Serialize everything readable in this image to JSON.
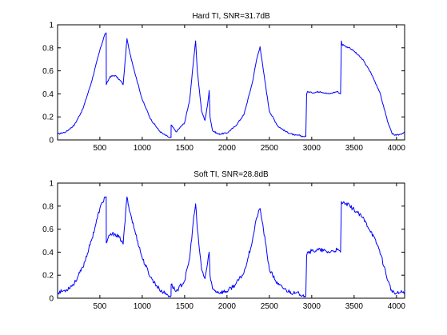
{
  "chart_data": [
    {
      "type": "line",
      "title": "Hard TI, SNR=31.7dB",
      "xlabel": "",
      "ylabel": "",
      "xlim": [
        1,
        4096
      ],
      "ylim": [
        0,
        1
      ],
      "xticks": [
        500,
        1000,
        1500,
        2000,
        2500,
        3000,
        3500,
        4000
      ],
      "yticks": [
        0,
        0.2,
        0.4,
        0.6,
        0.8,
        1
      ],
      "grid": false,
      "line_color": "#0000ff",
      "series": [
        {
          "x": [
            1,
            100,
            200,
            300,
            400,
            500,
            560,
            575,
            576,
            620,
            680,
            760,
            775,
            820,
            840,
            900,
            1000,
            1100,
            1200,
            1250,
            1300,
            1320,
            1340,
            1341,
            1400,
            1500,
            1560,
            1600,
            1630,
            1650,
            1700,
            1740,
            1770,
            1790,
            1800,
            1830,
            1900,
            2000,
            2100,
            2200,
            2300,
            2350,
            2390,
            2430,
            2500,
            2600,
            2700,
            2800,
            2850,
            2900,
            2930,
            2940,
            2950,
            3000,
            3100,
            3200,
            3250,
            3300,
            3340,
            3350,
            3360,
            3370,
            3400,
            3450,
            3500,
            3600,
            3700,
            3800,
            3900,
            3950,
            4000,
            4050,
            4096
          ],
          "y": [
            0.05,
            0.07,
            0.13,
            0.27,
            0.5,
            0.78,
            0.92,
            0.93,
            0.48,
            0.55,
            0.56,
            0.5,
            0.48,
            0.88,
            0.8,
            0.62,
            0.35,
            0.18,
            0.08,
            0.05,
            0.03,
            0.02,
            0.02,
            0.13,
            0.07,
            0.15,
            0.35,
            0.65,
            0.86,
            0.6,
            0.25,
            0.17,
            0.3,
            0.43,
            0.2,
            0.08,
            0.05,
            0.06,
            0.12,
            0.22,
            0.5,
            0.7,
            0.81,
            0.6,
            0.25,
            0.12,
            0.07,
            0.04,
            0.04,
            0.03,
            0.03,
            0.4,
            0.42,
            0.41,
            0.42,
            0.4,
            0.41,
            0.42,
            0.4,
            0.86,
            0.82,
            0.83,
            0.81,
            0.8,
            0.77,
            0.7,
            0.58,
            0.42,
            0.15,
            0.05,
            0.04,
            0.05,
            0.07
          ]
        }
      ]
    },
    {
      "type": "line",
      "title": "Soft TI, SNR=28.8dB",
      "xlabel": "",
      "ylabel": "",
      "xlim": [
        1,
        4096
      ],
      "ylim": [
        0,
        1
      ],
      "xticks": [
        500,
        1000,
        1500,
        2000,
        2500,
        3000,
        3500,
        4000
      ],
      "yticks": [
        0,
        0.2,
        0.4,
        0.6,
        0.8,
        1
      ],
      "grid": false,
      "line_color": "#0000ff",
      "series": [
        {
          "x": [
            1,
            100,
            200,
            300,
            400,
            500,
            560,
            575,
            576,
            620,
            680,
            760,
            775,
            820,
            840,
            900,
            1000,
            1100,
            1200,
            1250,
            1300,
            1320,
            1340,
            1341,
            1400,
            1500,
            1560,
            1600,
            1630,
            1650,
            1700,
            1740,
            1770,
            1790,
            1800,
            1830,
            1900,
            2000,
            2100,
            2200,
            2300,
            2350,
            2390,
            2430,
            2500,
            2600,
            2700,
            2800,
            2850,
            2900,
            2930,
            2940,
            2950,
            3000,
            3100,
            3200,
            3250,
            3300,
            3340,
            3350,
            3360,
            3370,
            3400,
            3450,
            3500,
            3600,
            3700,
            3800,
            3900,
            3950,
            4000,
            4050,
            4096
          ],
          "y": [
            0.05,
            0.07,
            0.13,
            0.27,
            0.5,
            0.78,
            0.88,
            0.88,
            0.48,
            0.55,
            0.56,
            0.5,
            0.47,
            0.88,
            0.8,
            0.62,
            0.35,
            0.18,
            0.08,
            0.05,
            0.03,
            0.02,
            0.02,
            0.12,
            0.06,
            0.15,
            0.35,
            0.65,
            0.82,
            0.6,
            0.25,
            0.17,
            0.3,
            0.4,
            0.2,
            0.08,
            0.05,
            0.06,
            0.12,
            0.22,
            0.5,
            0.7,
            0.78,
            0.6,
            0.25,
            0.12,
            0.07,
            0.04,
            0.04,
            0.03,
            0.02,
            0.37,
            0.4,
            0.41,
            0.42,
            0.4,
            0.41,
            0.42,
            0.4,
            0.84,
            0.82,
            0.83,
            0.82,
            0.8,
            0.77,
            0.7,
            0.58,
            0.42,
            0.15,
            0.05,
            0.04,
            0.05,
            0.06
          ]
        }
      ]
    }
  ]
}
